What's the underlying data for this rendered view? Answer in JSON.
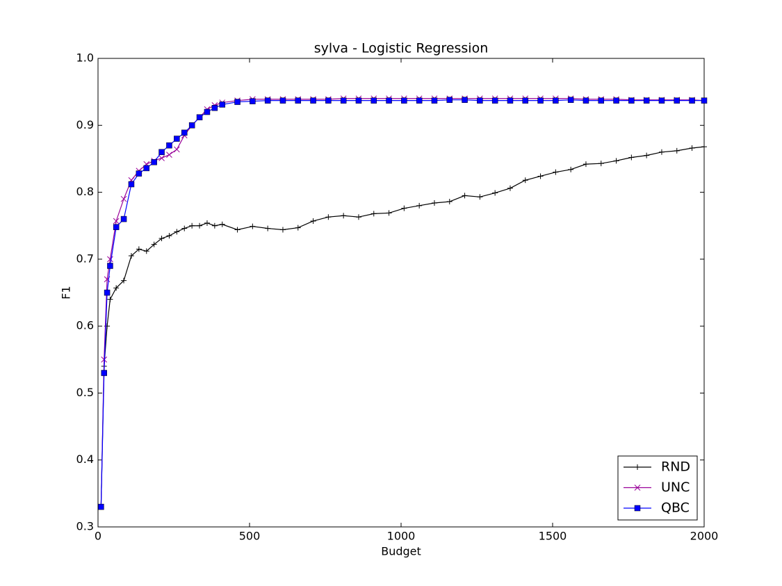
{
  "chart_data": {
    "type": "line",
    "title": "sylva - Logistic Regression",
    "x_label": "Budget",
    "y_label": "F1",
    "x": [
      10,
      20,
      30,
      40,
      60,
      85,
      110,
      135,
      160,
      185,
      210,
      235,
      260,
      285,
      310,
      335,
      360,
      385,
      410,
      460,
      510,
      560,
      610,
      660,
      710,
      760,
      810,
      860,
      910,
      960,
      1010,
      1060,
      1110,
      1160,
      1210,
      1260,
      1310,
      1360,
      1410,
      1460,
      1510,
      1560,
      1610,
      1660,
      1710,
      1760,
      1810,
      1860,
      1910,
      1960,
      2000
    ],
    "series": [
      {
        "name": "RND",
        "color": "#000000",
        "marker": "plus",
        "values": [
          0.33,
          0.54,
          0.6,
          0.64,
          0.657,
          0.668,
          0.705,
          0.715,
          0.712,
          0.722,
          0.731,
          0.735,
          0.741,
          0.746,
          0.75,
          0.75,
          0.754,
          0.75,
          0.752,
          0.744,
          0.749,
          0.746,
          0.744,
          0.747,
          0.757,
          0.763,
          0.765,
          0.763,
          0.768,
          0.769,
          0.776,
          0.78,
          0.784,
          0.786,
          0.795,
          0.793,
          0.799,
          0.806,
          0.818,
          0.824,
          0.83,
          0.834,
          0.842,
          0.843,
          0.847,
          0.852,
          0.855,
          0.86,
          0.862,
          0.866,
          0.868
        ]
      },
      {
        "name": "UNC",
        "color": "#990099",
        "marker": "x",
        "values": [
          0.33,
          0.55,
          0.67,
          0.7,
          0.757,
          0.79,
          0.818,
          0.832,
          0.842,
          0.847,
          0.851,
          0.856,
          0.864,
          0.885,
          0.9,
          0.912,
          0.924,
          0.93,
          0.934,
          0.937,
          0.939,
          0.939,
          0.939,
          0.939,
          0.939,
          0.939,
          0.94,
          0.94,
          0.94,
          0.94,
          0.94,
          0.94,
          0.94,
          0.94,
          0.94,
          0.94,
          0.94,
          0.94,
          0.94,
          0.94,
          0.94,
          0.94,
          0.939,
          0.939,
          0.939,
          0.938,
          0.938,
          0.938,
          0.938,
          0.938,
          0.937
        ]
      },
      {
        "name": "QBC",
        "color": "#0000ff",
        "marker": "square",
        "values": [
          0.33,
          0.53,
          0.65,
          0.69,
          0.748,
          0.76,
          0.812,
          0.828,
          0.836,
          0.845,
          0.86,
          0.87,
          0.88,
          0.889,
          0.9,
          0.912,
          0.92,
          0.926,
          0.931,
          0.935,
          0.936,
          0.937,
          0.937,
          0.937,
          0.937,
          0.937,
          0.937,
          0.937,
          0.937,
          0.937,
          0.937,
          0.937,
          0.937,
          0.938,
          0.938,
          0.937,
          0.937,
          0.937,
          0.937,
          0.937,
          0.937,
          0.938,
          0.937,
          0.937,
          0.937,
          0.937,
          0.937,
          0.937,
          0.937,
          0.937,
          0.937
        ]
      }
    ],
    "xlim": [
      0,
      2000
    ],
    "xticks": [
      0,
      500,
      1000,
      1500,
      2000
    ],
    "ylim": [
      0.3,
      1.0
    ],
    "yticks": [
      0.3,
      0.4,
      0.5,
      0.6,
      0.7,
      0.8,
      0.9,
      {
        "value": 1.0,
        "label": "1.0"
      }
    ],
    "grid": false,
    "legend": "lower right"
  }
}
